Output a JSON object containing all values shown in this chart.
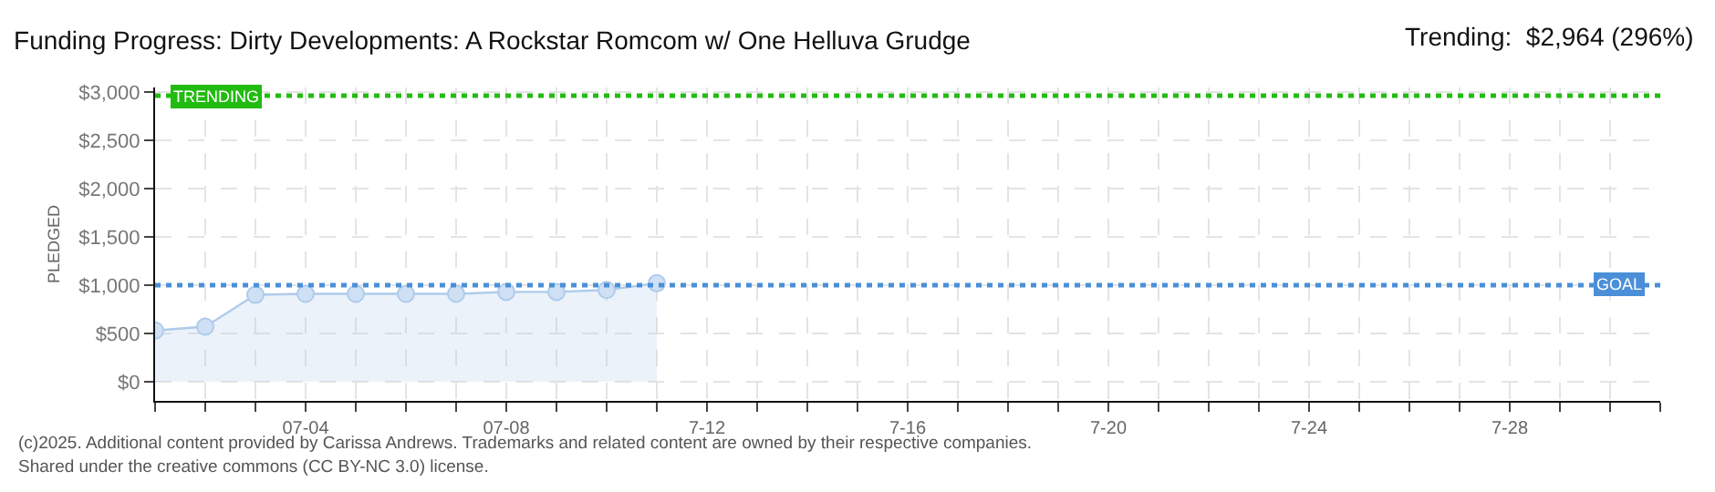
{
  "chart_data": {
    "type": "area",
    "title": "Funding Progress: Dirty Developments: A Rockstar Romcom w/ One Helluva Grudge",
    "ylabel": "PLEDGED",
    "x": [
      "--07-01",
      "--07-02",
      "--07-03",
      "--07-04",
      "--07-05",
      "--07-06",
      "--07-07",
      "--07-08",
      "--07-09",
      "--07-10",
      "--07-11"
    ],
    "series": [
      {
        "color": "#aecbeb",
        "values": [
          530,
          570,
          900,
          910,
          910,
          910,
          910,
          930,
          930,
          950,
          1020
        ]
      }
    ],
    "xlim": [
      "--07-01",
      "--07-31"
    ],
    "xticks": [
      {
        "value": "--07-01",
        "label": null
      },
      {
        "value": "--07-02",
        "label": null
      },
      {
        "value": "--07-03",
        "label": null
      },
      {
        "value": "--07-04",
        "label": "07-04"
      },
      {
        "value": "--07-05",
        "label": null
      },
      {
        "value": "--07-06",
        "label": null
      },
      {
        "value": "--07-07",
        "label": null
      },
      {
        "value": "--07-08",
        "label": "07-08"
      },
      {
        "value": "--07-09",
        "label": null
      },
      {
        "value": "--07-10",
        "label": null
      },
      {
        "value": "--07-11",
        "label": null
      },
      {
        "value": "--07-12",
        "label": "7-12"
      },
      {
        "value": "--07-13",
        "label": null
      },
      {
        "value": "--07-14",
        "label": null
      },
      {
        "value": "--07-15",
        "label": null
      },
      {
        "value": "--07-16",
        "label": "7-16"
      },
      {
        "value": "--07-17",
        "label": null
      },
      {
        "value": "--07-18",
        "label": null
      },
      {
        "value": "--07-19",
        "label": null
      },
      {
        "value": "--07-20",
        "label": "7-20"
      },
      {
        "value": "--07-21",
        "label": null
      },
      {
        "value": "--07-22",
        "label": null
      },
      {
        "value": "--07-23",
        "label": null
      },
      {
        "value": "--07-24",
        "label": "7-24"
      },
      {
        "value": "--07-25",
        "label": null
      },
      {
        "value": "--07-26",
        "label": null
      },
      {
        "value": "--07-27",
        "label": null
      },
      {
        "value": "--07-28",
        "label": "7-28"
      },
      {
        "value": "--07-29",
        "label": null
      },
      {
        "value": "--07-30",
        "label": null
      },
      {
        "value": "--07-31",
        "label": null
      }
    ],
    "ylim": [
      -200,
      3050
    ],
    "yticks": [
      {
        "value": 0,
        "label": "$0"
      },
      {
        "value": 500,
        "label": "$500"
      },
      {
        "value": 1000,
        "label": "$1,000"
      },
      {
        "value": 1500,
        "label": "$1,500"
      },
      {
        "value": 2000,
        "label": "$2,000"
      },
      {
        "value": 2500,
        "label": "$2,500"
      },
      {
        "value": 3000,
        "label": "$3,000"
      }
    ],
    "ref_lines": [
      {
        "axis": "y",
        "value": 2964,
        "label": "TRENDING",
        "color": "#22bb11",
        "line_style": "dotted"
      },
      {
        "axis": "y",
        "value": 1000,
        "label": "GOAL",
        "color": "#4a8fd8",
        "line_style": "dotted"
      }
    ],
    "annotations": [
      "Trending:  $2,964 (296%)",
      "(c)2025. Additional content provided by Carissa Andrews. Trademarks and related content are owned by their respective companies.",
      "Shared under the creative commons (CC BY-NC 3.0) license."
    ],
    "grid": true,
    "marker": "circle",
    "line_style": "solid",
    "legend": false
  }
}
